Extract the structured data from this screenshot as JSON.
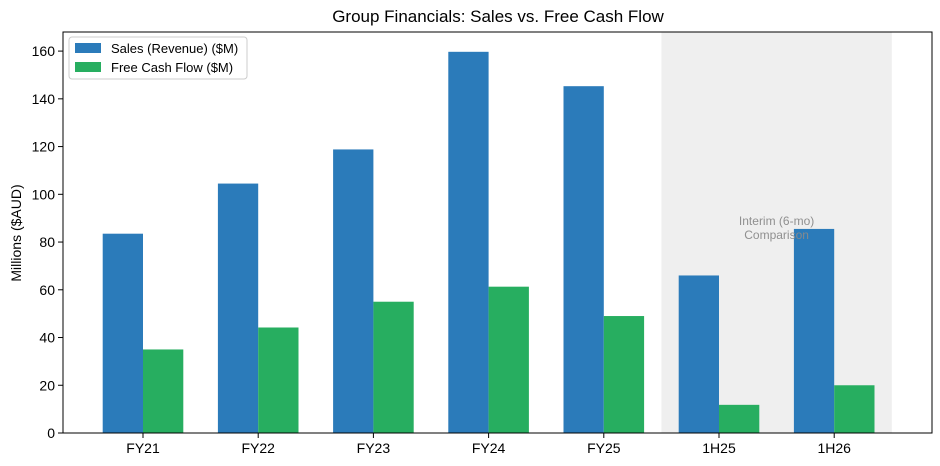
{
  "chart_data": {
    "type": "bar",
    "title": "Group Financials: Sales vs. Free Cash Flow",
    "xlabel": "",
    "ylabel": "Millions ($AUD)",
    "ylim": [
      0,
      168
    ],
    "yticks": [
      0,
      20,
      40,
      60,
      80,
      100,
      120,
      140,
      160
    ],
    "categories": [
      "FY21",
      "FY22",
      "FY23",
      "FY24",
      "FY25",
      "1H25",
      "1H26"
    ],
    "series": [
      {
        "name": "Sales (Revenue) ($M)",
        "color": "#2b7bba",
        "values": [
          83.5,
          104.5,
          118.8,
          159.7,
          145.3,
          66.0,
          85.5
        ]
      },
      {
        "name": "Free Cash Flow ($M)",
        "color": "#27ae60",
        "values": [
          35.0,
          44.2,
          55.0,
          61.3,
          49.0,
          11.8,
          20.0
        ]
      }
    ],
    "shaded_region": {
      "from_category": "1H25",
      "to_category": "1H26",
      "color": "#efefef",
      "label_lines": [
        "Interim (6-mo)",
        "Comparison"
      ]
    },
    "legend_position": "top-left",
    "grid": false
  }
}
